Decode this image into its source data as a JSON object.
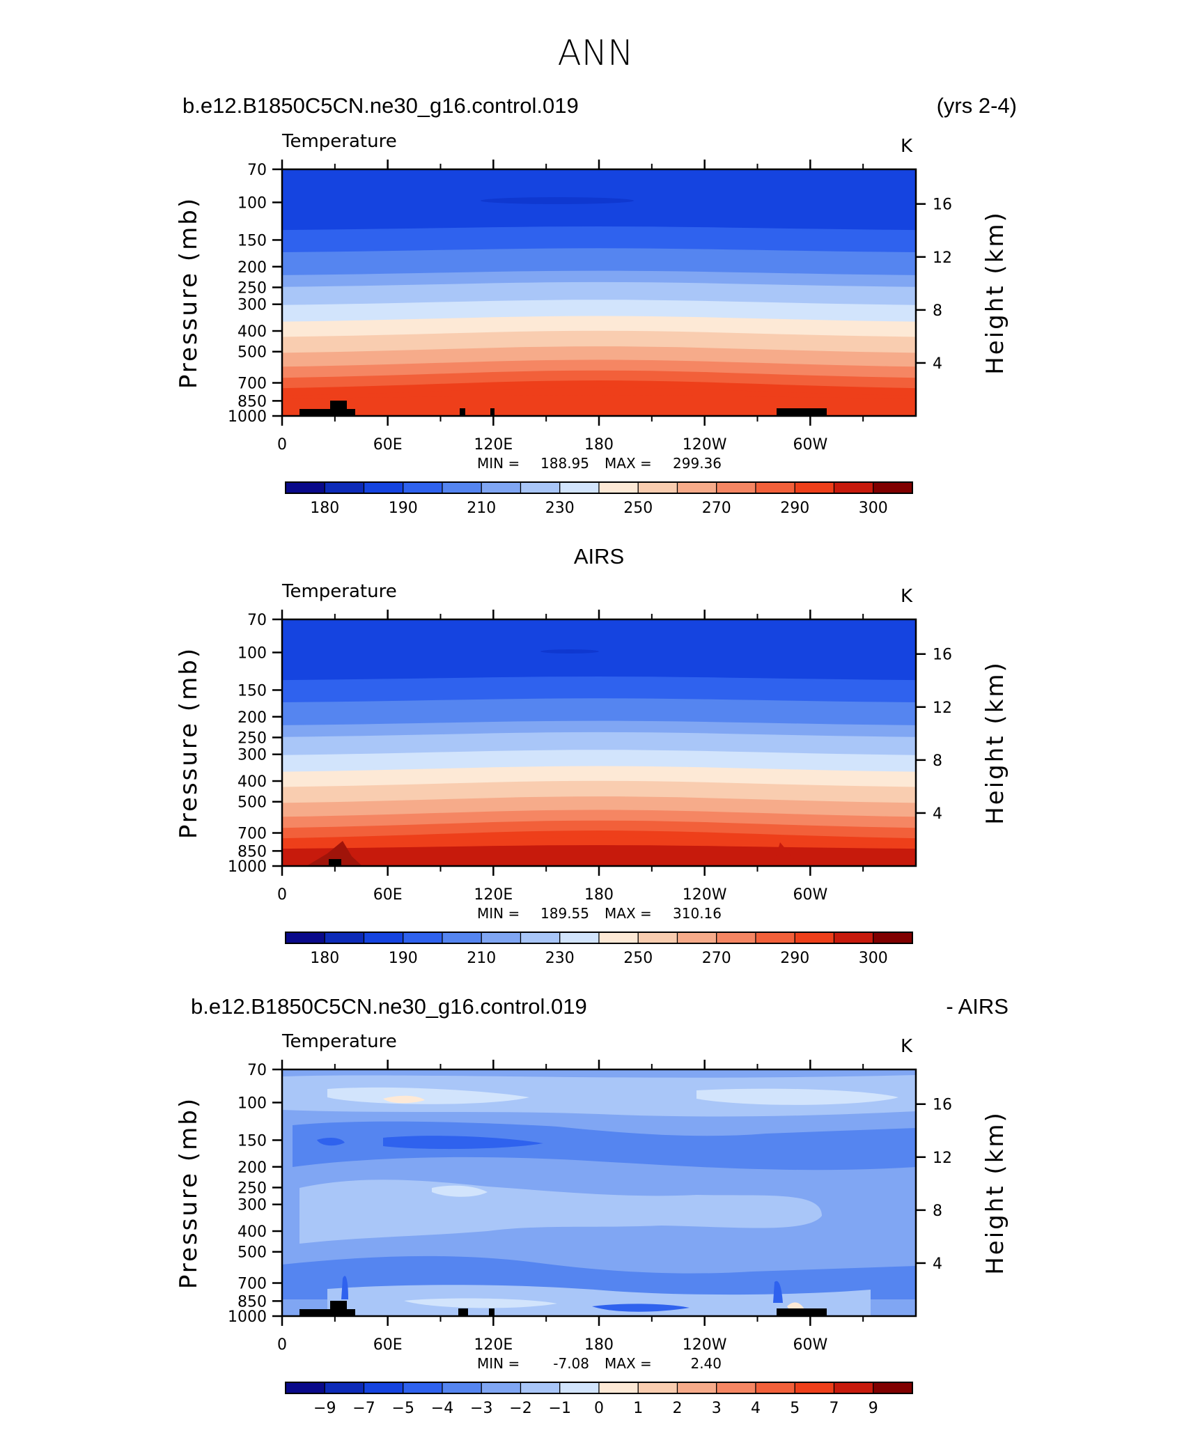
{
  "figure_title": "ANN",
  "chart_data": [
    {
      "type": "heatmap",
      "header_left": "b.e12.B1850C5CN.ne30_g16.control.019",
      "header_right": "(yrs 2-4)",
      "variable": "Temperature",
      "units": "K",
      "ylabel": "Pressure (mb)",
      "ylabel_right": "Height (km)",
      "x_ticks": [
        "0",
        "60E",
        "120E",
        "180",
        "120W",
        "60W"
      ],
      "y_ticks": [
        "70",
        "100",
        "150",
        "200",
        "250",
        "300",
        "400",
        "500",
        "700",
        "850",
        "1000"
      ],
      "y_ticks_right": [
        "16",
        "12",
        "8",
        "4"
      ],
      "min_label": "MIN =",
      "min_value": "188.95",
      "max_label": "MAX =",
      "max_value": "299.36",
      "colorbar_labels": [
        "180",
        "190",
        "210",
        "230",
        "250",
        "270",
        "290",
        "300"
      ],
      "ylim": [
        1000,
        70
      ],
      "grid": false
    },
    {
      "type": "heatmap",
      "header_center": "AIRS",
      "variable": "Temperature",
      "units": "K",
      "ylabel": "Pressure (mb)",
      "ylabel_right": "Height (km)",
      "x_ticks": [
        "0",
        "60E",
        "120E",
        "180",
        "120W",
        "60W"
      ],
      "y_ticks": [
        "70",
        "100",
        "150",
        "200",
        "250",
        "300",
        "400",
        "500",
        "700",
        "850",
        "1000"
      ],
      "y_ticks_right": [
        "16",
        "12",
        "8",
        "4"
      ],
      "min_label": "MIN =",
      "min_value": "189.55",
      "max_label": "MAX =",
      "max_value": "310.16",
      "colorbar_labels": [
        "180",
        "190",
        "210",
        "230",
        "250",
        "270",
        "290",
        "300"
      ],
      "ylim": [
        1000,
        70
      ],
      "grid": false
    },
    {
      "type": "heatmap",
      "header_left": "b.e12.B1850C5CN.ne30_g16.control.019",
      "header_right": "- AIRS",
      "variable": "Temperature",
      "units": "K",
      "ylabel": "Pressure (mb)",
      "ylabel_right": "Height (km)",
      "x_ticks": [
        "0",
        "60E",
        "120E",
        "180",
        "120W",
        "60W"
      ],
      "y_ticks": [
        "70",
        "100",
        "150",
        "200",
        "250",
        "300",
        "400",
        "500",
        "700",
        "850",
        "1000"
      ],
      "y_ticks_right": [
        "16",
        "12",
        "8",
        "4"
      ],
      "min_label": "MIN =",
      "min_value": "-7.08",
      "max_label": "MAX =",
      "max_value": "2.40",
      "colorbar_labels": [
        "−9",
        "−7",
        "−5",
        "−4",
        "−3",
        "−2",
        "−1",
        "0",
        "1",
        "2",
        "3",
        "4",
        "5",
        "7",
        "9"
      ],
      "ylim": [
        1000,
        70
      ],
      "grid": false
    }
  ],
  "colors": {
    "levels": [
      "#0a0a8a",
      "#0d2bb8",
      "#1544e0",
      "#2f62ee",
      "#5585f0",
      "#80a6f3",
      "#a9c6f8",
      "#d2e4fc",
      "#fde9d6",
      "#f9cdb0",
      "#f6ab8a",
      "#f58663",
      "#f2603a",
      "#ee3f1a",
      "#c71a0c",
      "#800000"
    ],
    "land": "#000000"
  }
}
